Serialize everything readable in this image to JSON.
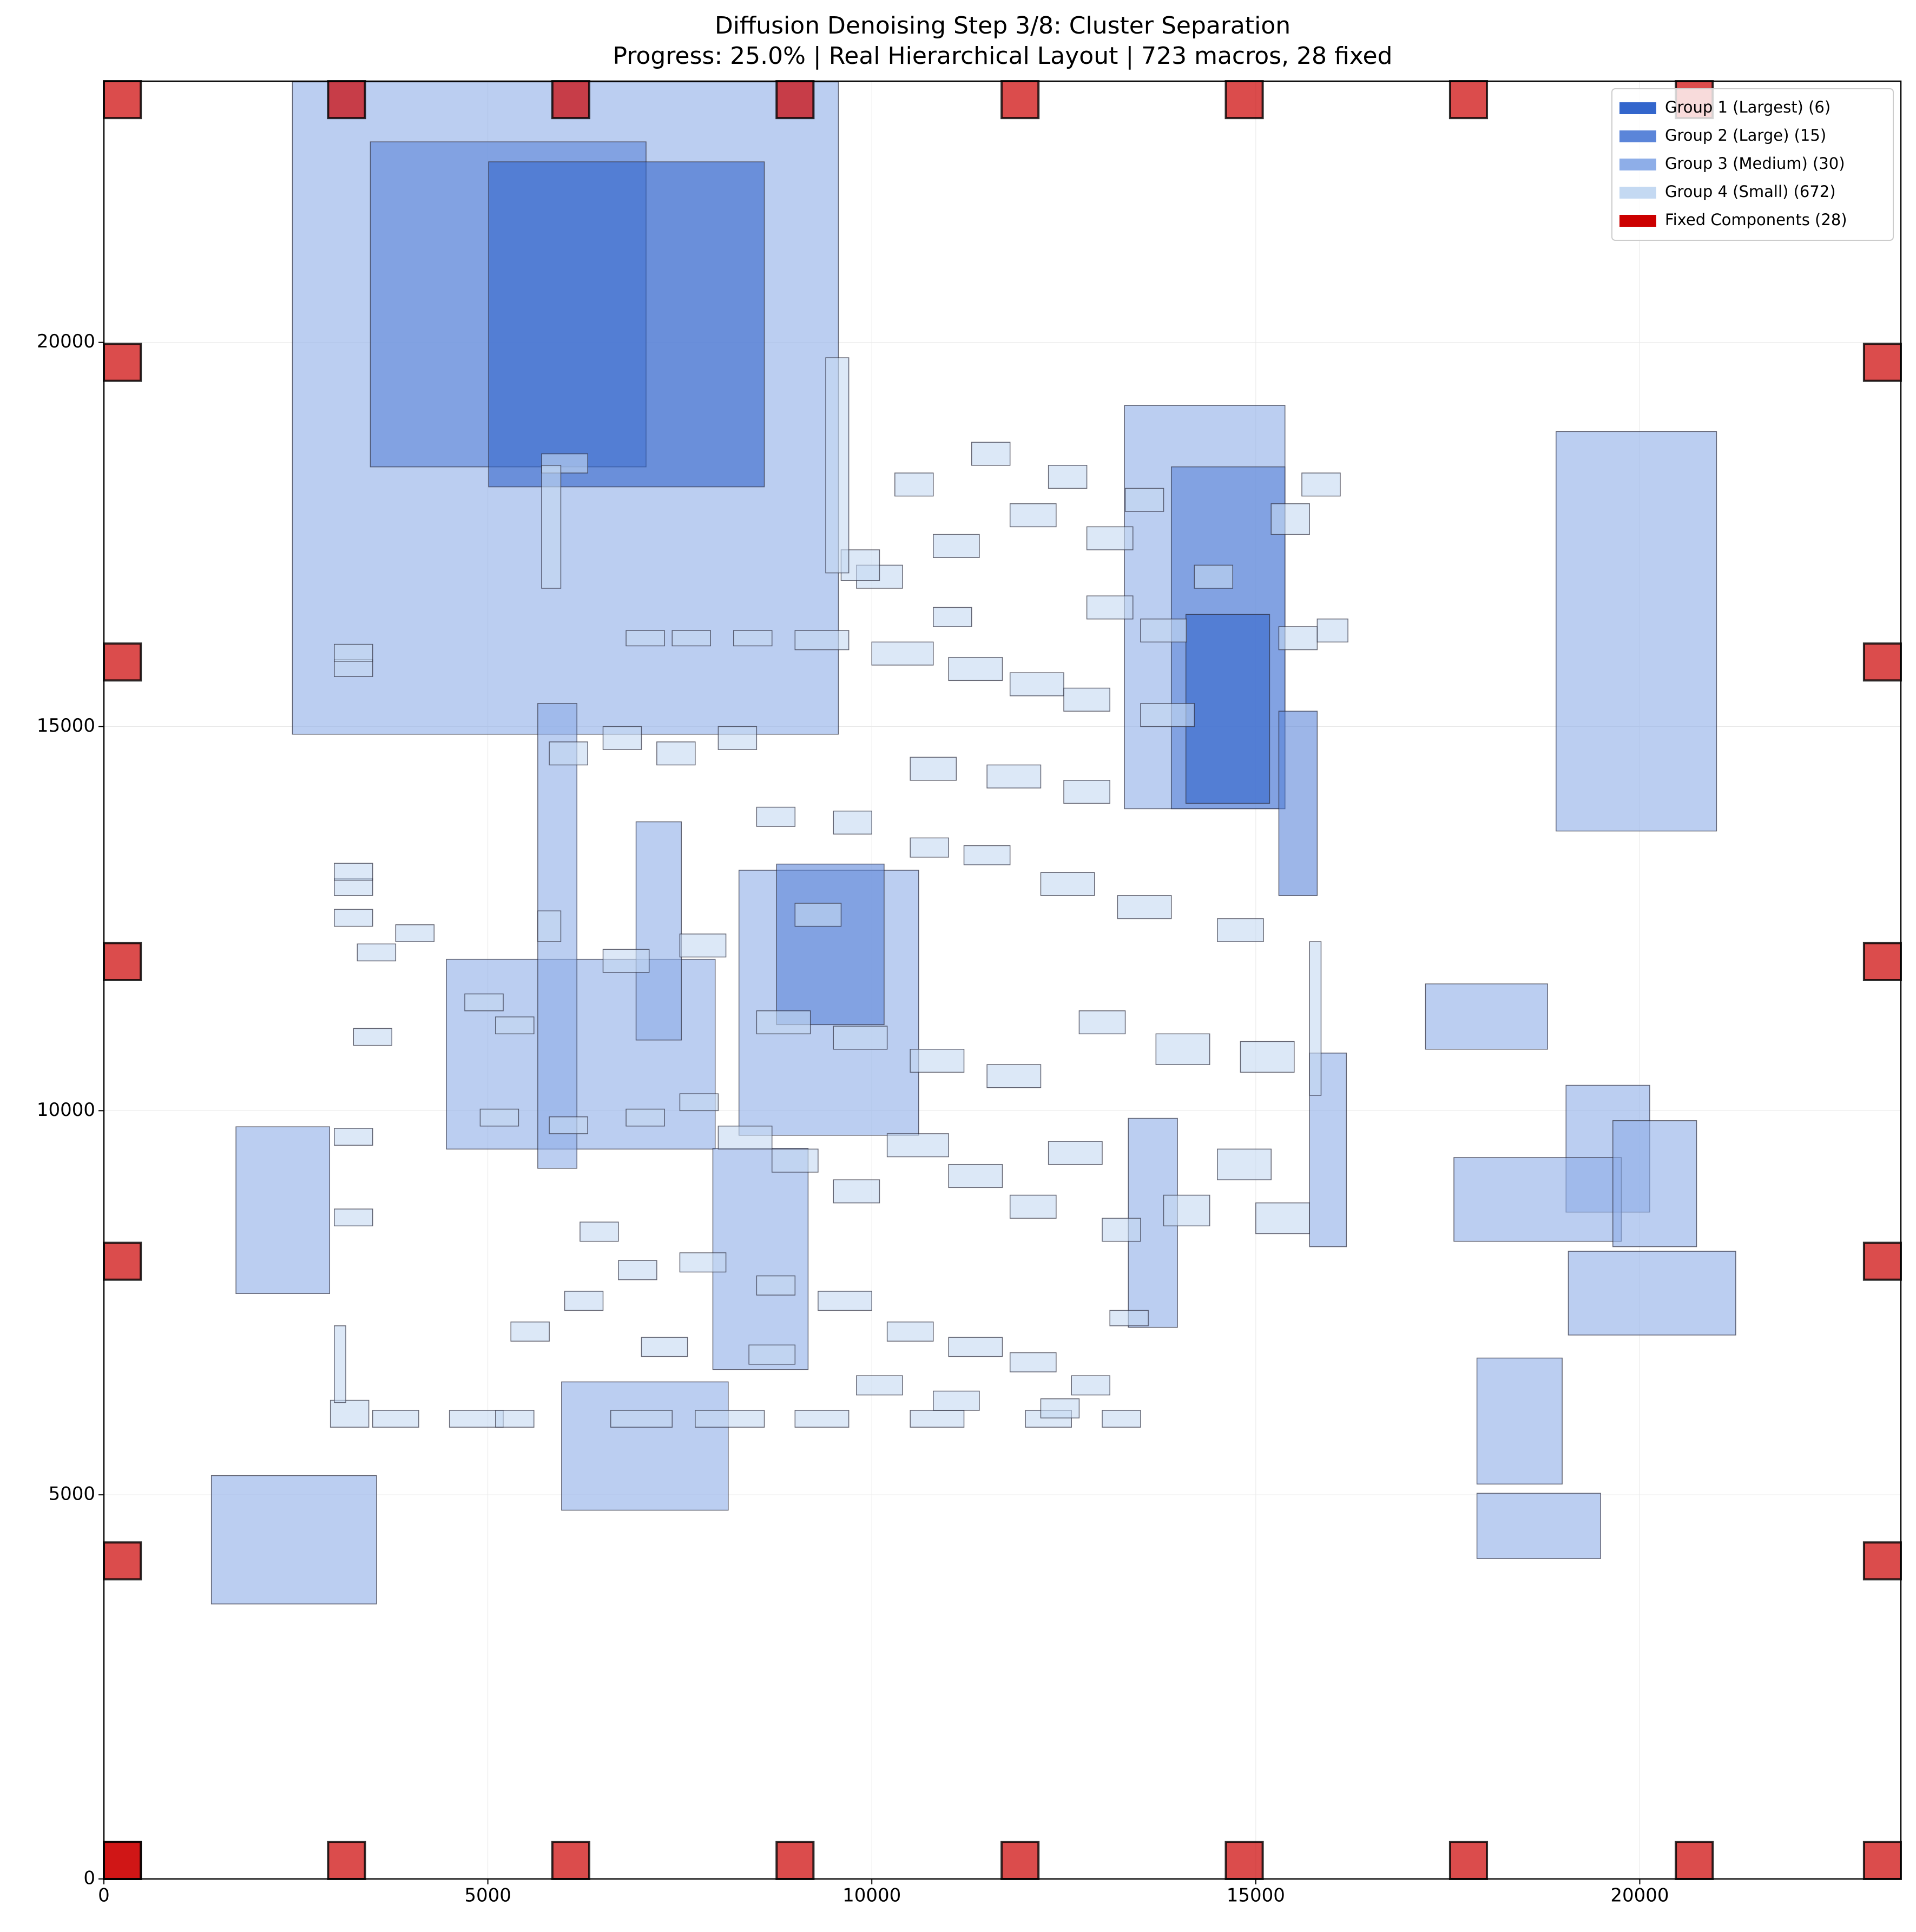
{
  "chart_data": {
    "type": "placement",
    "title": "Diffusion Denoising Step 3/8: Cluster Separation",
    "subtitle": "Progress: 25.0% | Real Hierarchical Layout | 723 macros, 28 fixed",
    "xlim": [
      0,
      23400
    ],
    "ylim": [
      0,
      23400
    ],
    "xticks": [
      0,
      5000,
      10000,
      15000,
      20000
    ],
    "yticks": [
      0,
      5000,
      10000,
      15000,
      20000
    ],
    "grid": true,
    "legend": "upper right",
    "series": [
      {
        "name": "Group 3 (Medium) (30)",
        "color": "#8eaee8",
        "rects": [
          [
            2455,
            14900,
            7110,
            8490
          ],
          [
            13290,
            13930,
            2090,
            5250
          ],
          [
            18910,
            13640,
            2090,
            5200
          ],
          [
            4460,
            9500,
            3500,
            2470
          ],
          [
            1720,
            7620,
            1220,
            2170
          ],
          [
            1400,
            3580,
            2150,
            1670
          ],
          [
            5960,
            4800,
            2170,
            1670
          ],
          [
            17210,
            10800,
            1590,
            850
          ],
          [
            19040,
            8680,
            1090,
            1650
          ],
          [
            17580,
            8300,
            2180,
            1090
          ],
          [
            19650,
            8230,
            1090,
            1640
          ],
          [
            19070,
            7080,
            2180,
            1090
          ],
          [
            17880,
            5140,
            1110,
            1640
          ],
          [
            17880,
            4170,
            1610,
            850
          ],
          [
            8270,
            9680,
            2340,
            3450
          ],
          [
            7930,
            6630,
            1240,
            2880
          ],
          [
            13340,
            7180,
            640,
            2720
          ],
          [
            5650,
            9250,
            510,
            6050
          ],
          [
            15700,
            8230,
            480,
            2520
          ],
          [
            6930,
            10920,
            590,
            2840
          ]
        ]
      },
      {
        "name": "Group 2 (Large) (15)",
        "color": "#5b85d9",
        "rects": [
          [
            3470,
            18380,
            3590,
            4230
          ],
          [
            13900,
            13930,
            1480,
            4450
          ],
          [
            8760,
            11120,
            1400,
            2090
          ],
          [
            15300,
            12800,
            500,
            2400
          ]
        ]
      },
      {
        "name": "Group 1 (Largest) (6)",
        "color": "#3366cc",
        "rects": [
          [
            5010,
            18120,
            3590,
            4230
          ],
          [
            14090,
            14000,
            1090,
            2460
          ]
        ]
      },
      {
        "name": "Group 4 (Small) (672)",
        "color": "#c4d9f2",
        "rects": [
          [
            4500,
            5880,
            700,
            220
          ],
          [
            5100,
            5880,
            500,
            220
          ],
          [
            6600,
            5880,
            800,
            220
          ],
          [
            7700,
            5880,
            900,
            220
          ],
          [
            9000,
            5880,
            700,
            220
          ],
          [
            10500,
            5880,
            700,
            220
          ],
          [
            12000,
            5880,
            600,
            220
          ],
          [
            13000,
            5880,
            500,
            220
          ],
          [
            2950,
            5880,
            500,
            350
          ],
          [
            3500,
            5880,
            600,
            220
          ],
          [
            3000,
            15650,
            500,
            220
          ],
          [
            3000,
            15850,
            500,
            220
          ],
          [
            3000,
            12800,
            500,
            220
          ],
          [
            3000,
            13000,
            500,
            220
          ],
          [
            3000,
            12400,
            500,
            220
          ],
          [
            3800,
            12200,
            500,
            220
          ],
          [
            3300,
            11950,
            500,
            220
          ],
          [
            4700,
            11300,
            500,
            220
          ],
          [
            5100,
            11000,
            500,
            220
          ],
          [
            3250,
            10850,
            500,
            220
          ],
          [
            3000,
            9550,
            500,
            220
          ],
          [
            3000,
            8500,
            500,
            220
          ],
          [
            4900,
            9800,
            500,
            220
          ],
          [
            5800,
            9700,
            500,
            220
          ],
          [
            6800,
            9800,
            500,
            220
          ],
          [
            7500,
            10000,
            500,
            220
          ],
          [
            8000,
            9500,
            700,
            300
          ],
          [
            8700,
            9200,
            600,
            300
          ],
          [
            9500,
            8800,
            600,
            300
          ],
          [
            10200,
            9400,
            800,
            300
          ],
          [
            11000,
            9000,
            700,
            300
          ],
          [
            11800,
            8600,
            600,
            300
          ],
          [
            12300,
            9300,
            700,
            300
          ],
          [
            13000,
            8300,
            500,
            300
          ],
          [
            13800,
            8500,
            600,
            400
          ],
          [
            14500,
            9100,
            700,
            400
          ],
          [
            15000,
            8400,
            700,
            400
          ],
          [
            6200,
            8300,
            500,
            250
          ],
          [
            6700,
            7800,
            500,
            250
          ],
          [
            7500,
            7900,
            600,
            250
          ],
          [
            8500,
            7600,
            500,
            250
          ],
          [
            9300,
            7400,
            700,
            250
          ],
          [
            10200,
            7000,
            600,
            250
          ],
          [
            11000,
            6800,
            700,
            250
          ],
          [
            11800,
            6600,
            600,
            250
          ],
          [
            12600,
            6300,
            500,
            250
          ],
          [
            6000,
            7400,
            500,
            250
          ],
          [
            5300,
            7000,
            500,
            250
          ],
          [
            7000,
            6800,
            600,
            250
          ],
          [
            8400,
            6700,
            600,
            250
          ],
          [
            9800,
            6300,
            600,
            250
          ],
          [
            10800,
            6100,
            600,
            250
          ],
          [
            12200,
            6000,
            500,
            250
          ],
          [
            6800,
            16050,
            500,
            200
          ],
          [
            7400,
            16050,
            500,
            200
          ],
          [
            8200,
            16050,
            500,
            200
          ],
          [
            9000,
            16000,
            700,
            250
          ],
          [
            10000,
            15800,
            800,
            300
          ],
          [
            11000,
            15600,
            700,
            300
          ],
          [
            11800,
            15400,
            700,
            300
          ],
          [
            12500,
            15200,
            600,
            300
          ],
          [
            13500,
            15000,
            700,
            300
          ],
          [
            10500,
            14300,
            600,
            300
          ],
          [
            11500,
            14200,
            700,
            300
          ],
          [
            12500,
            14000,
            600,
            300
          ],
          [
            9500,
            13600,
            500,
            300
          ],
          [
            8500,
            13700,
            500,
            250
          ],
          [
            10500,
            13300,
            500,
            250
          ],
          [
            11200,
            13200,
            600,
            250
          ],
          [
            12200,
            12800,
            700,
            300
          ],
          [
            13200,
            12500,
            700,
            300
          ],
          [
            14500,
            12200,
            600,
            300
          ],
          [
            9000,
            12400,
            600,
            300
          ],
          [
            7500,
            12000,
            600,
            300
          ],
          [
            6500,
            11800,
            600,
            300
          ],
          [
            8500,
            11000,
            700,
            300
          ],
          [
            9500,
            10800,
            700,
            300
          ],
          [
            10500,
            10500,
            700,
            300
          ],
          [
            11500,
            10300,
            700,
            300
          ],
          [
            12700,
            11000,
            600,
            300
          ],
          [
            13700,
            10600,
            700,
            400
          ],
          [
            14800,
            10500,
            700,
            400
          ],
          [
            9800,
            16800,
            600,
            300
          ],
          [
            10800,
            17200,
            600,
            300
          ],
          [
            11800,
            17600,
            600,
            300
          ],
          [
            12800,
            17300,
            600,
            300
          ],
          [
            10300,
            18000,
            500,
            300
          ],
          [
            11300,
            18400,
            500,
            300
          ],
          [
            12300,
            18100,
            500,
            300
          ],
          [
            13300,
            17800,
            500,
            300
          ],
          [
            14200,
            16800,
            500,
            300
          ],
          [
            15200,
            17500,
            500,
            400
          ],
          [
            15600,
            18000,
            500,
            300
          ],
          [
            10800,
            16300,
            500,
            250
          ],
          [
            12800,
            16400,
            600,
            300
          ],
          [
            13500,
            16100,
            600,
            300
          ],
          [
            15300,
            16000,
            500,
            300
          ],
          [
            15800,
            16100,
            400,
            300
          ],
          [
            5700,
            18300,
            600,
            250
          ],
          [
            5700,
            16800,
            250,
            1600
          ],
          [
            5650,
            12200,
            300,
            400
          ],
          [
            8000,
            14700,
            500,
            300
          ],
          [
            7200,
            14500,
            500,
            300
          ],
          [
            6500,
            14700,
            500,
            300
          ],
          [
            5800,
            14500,
            500,
            300
          ],
          [
            9600,
            16900,
            500,
            400
          ],
          [
            9400,
            17000,
            300,
            2800
          ],
          [
            15700,
            10200,
            150,
            2000
          ],
          [
            13100,
            7200,
            500,
            200
          ],
          [
            3000,
            6200,
            150,
            1000
          ]
        ]
      },
      {
        "name": "Fixed Components (28)",
        "color": "#cc0000",
        "fixed": true,
        "rects": [
          [
            0,
            0,
            480,
            480
          ],
          [
            0,
            0,
            480,
            480
          ],
          [
            2920,
            0,
            480,
            480
          ],
          [
            5840,
            0,
            480,
            480
          ],
          [
            8760,
            0,
            480,
            480
          ],
          [
            11690,
            0,
            480,
            480
          ],
          [
            14610,
            0,
            480,
            480
          ],
          [
            17530,
            0,
            480,
            480
          ],
          [
            20470,
            0,
            480,
            480
          ],
          [
            22920,
            0,
            480,
            480
          ],
          [
            0,
            22920,
            480,
            480
          ],
          [
            2920,
            22920,
            480,
            480
          ],
          [
            5840,
            22920,
            480,
            480
          ],
          [
            8760,
            22920,
            480,
            480
          ],
          [
            11690,
            22920,
            480,
            480
          ],
          [
            14610,
            22920,
            480,
            480
          ],
          [
            17530,
            22920,
            480,
            480
          ],
          [
            20470,
            22920,
            480,
            480
          ],
          [
            0,
            3900,
            480,
            480
          ],
          [
            0,
            7800,
            480,
            480
          ],
          [
            0,
            11700,
            480,
            480
          ],
          [
            0,
            15600,
            480,
            480
          ],
          [
            0,
            19500,
            480,
            480
          ],
          [
            22920,
            3900,
            480,
            480
          ],
          [
            22920,
            7800,
            480,
            480
          ],
          [
            22920,
            11700,
            480,
            480
          ],
          [
            22920,
            15600,
            480,
            480
          ],
          [
            22920,
            19500,
            480,
            480
          ]
        ]
      }
    ]
  }
}
